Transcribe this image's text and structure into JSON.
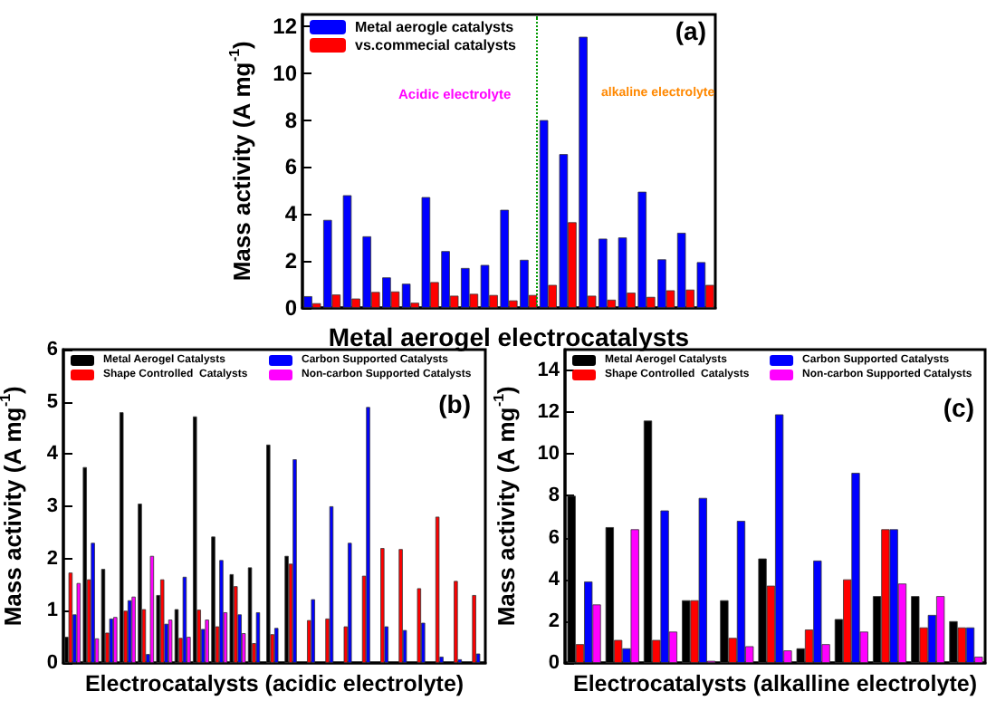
{
  "chart_data": [
    {
      "type": "bar",
      "xlabel": "Metal aerogel electrocatalysts",
      "ylabel": "Mass activity (A mg$^{-1}$)",
      "categories": [
        null,
        null,
        null,
        null,
        null,
        null,
        null,
        null,
        null,
        null,
        null,
        null,
        null,
        null,
        null,
        null,
        null,
        null,
        null,
        null,
        null
      ],
      "tick_labels": "y",
      "ylim": [
        0,
        12.5
      ],
      "yticks": [
        0,
        2,
        4,
        6,
        8,
        10,
        12
      ],
      "series": [
        {
          "name": "Metal aerogle catalysts",
          "color": "#0000ff",
          "values": [
            0.5,
            3.75,
            4.8,
            3.05,
            1.3,
            1.03,
            4.72,
            2.42,
            1.7,
            1.83,
            4.18,
            2.05,
            8.0,
            6.55,
            11.55,
            2.95,
            3.0,
            4.95,
            2.07,
            3.2,
            1.95
          ]
        },
        {
          "name": "vs.commecial catalysts",
          "color": "#ff0000",
          "values": [
            0.2,
            0.57,
            0.4,
            0.68,
            0.7,
            0.22,
            1.1,
            0.52,
            0.6,
            0.55,
            0.32,
            0.55,
            0.98,
            3.65,
            0.52,
            0.35,
            0.65,
            0.47,
            0.75,
            0.78,
            0.98
          ]
        }
      ],
      "annotations": [
        "Acidic electrolyte",
        "alkaline electrolyte",
        "(a)"
      ],
      "legend": "top left"
    },
    {
      "type": "bar",
      "xlabel": "Electrocatalysts (acidic electrolyte)",
      "ylabel": "Mass activity (A mg$^{-1}$)",
      "categories": [
        null,
        null,
        null,
        null,
        null,
        null,
        null,
        null,
        null,
        null,
        null,
        null,
        null,
        null,
        null,
        null,
        null,
        null,
        null,
        null,
        null,
        null,
        null
      ],
      "tick_labels": "y",
      "ylim": [
        0,
        6
      ],
      "yticks": [
        0,
        1,
        2,
        3,
        4,
        5,
        6
      ],
      "series": [
        {
          "name": "Metal Aerogel Catalysts",
          "color": "#000000",
          "values": [
            0.5,
            3.75,
            1.8,
            4.8,
            3.05,
            1.3,
            1.03,
            4.72,
            2.42,
            1.7,
            1.83,
            4.18,
            2.05,
            null,
            null,
            null,
            null,
            null,
            null,
            null,
            null,
            null,
            null
          ]
        },
        {
          "name": "Shape Controlled  Catalysts",
          "color": "#ff0000",
          "values": [
            1.73,
            1.6,
            0.58,
            1.0,
            1.03,
            1.6,
            0.48,
            1.02,
            0.7,
            1.47,
            0.38,
            0.55,
            1.9,
            0.82,
            0.85,
            0.7,
            1.67,
            2.2,
            2.18,
            1.43,
            2.8,
            1.57,
            1.3
          ]
        },
        {
          "name": "Carbon Supported Catalysts",
          "color": "#0000ff",
          "values": [
            0.93,
            2.3,
            0.85,
            1.2,
            0.17,
            0.75,
            1.65,
            0.65,
            1.97,
            0.93,
            0.97,
            0.67,
            3.9,
            1.22,
            3.0,
            2.3,
            4.9,
            0.7,
            0.63,
            0.77,
            0.12,
            0.07,
            0.18
          ]
        },
        {
          "name": "Non-carbon Supported Catalysts",
          "color": "#ff00ff",
          "values": [
            1.53,
            0.47,
            0.88,
            1.27,
            2.05,
            0.83,
            0.5,
            0.83,
            0.97,
            0.57,
            null,
            null,
            null,
            null,
            null,
            null,
            null,
            null,
            null,
            null,
            null,
            null,
            null
          ]
        }
      ],
      "annotations": [
        "(b)"
      ],
      "legend": "top"
    },
    {
      "type": "bar",
      "xlabel": "Electrocatalysts (alkalline electrolyte)",
      "ylabel": "Mass activity (A mg$^{-1}$)",
      "categories": [
        null,
        null,
        null,
        null,
        null,
        null,
        null,
        null,
        null,
        null,
        null
      ],
      "tick_labels": "y",
      "ylim": [
        0,
        15
      ],
      "yticks": [
        0,
        2,
        4,
        6,
        8,
        10,
        12,
        14
      ],
      "series": [
        {
          "name": "Metal Aerogel Catalysts",
          "color": "#000000",
          "values": [
            8.0,
            6.5,
            11.6,
            3.0,
            3.0,
            5.0,
            0.7,
            2.1,
            3.2,
            3.2,
            2.0
          ]
        },
        {
          "name": "Shape Controlled  Catalysts",
          "color": "#ff0000",
          "values": [
            0.9,
            1.1,
            1.1,
            3.0,
            1.2,
            3.7,
            1.6,
            4.0,
            6.4,
            1.7,
            1.7
          ]
        },
        {
          "name": "Carbon Supported Catalysts",
          "color": "#0000ff",
          "values": [
            3.9,
            0.7,
            7.3,
            7.9,
            6.8,
            11.9,
            4.9,
            9.1,
            6.4,
            2.3,
            1.7
          ]
        },
        {
          "name": "Non-carbon Supported Catalysts",
          "color": "#ff00ff",
          "values": [
            2.8,
            6.4,
            1.5,
            0.1,
            0.8,
            0.6,
            0.9,
            1.5,
            3.8,
            3.2,
            0.3
          ]
        }
      ],
      "annotations": [
        "(c)"
      ],
      "legend": "top"
    }
  ]
}
